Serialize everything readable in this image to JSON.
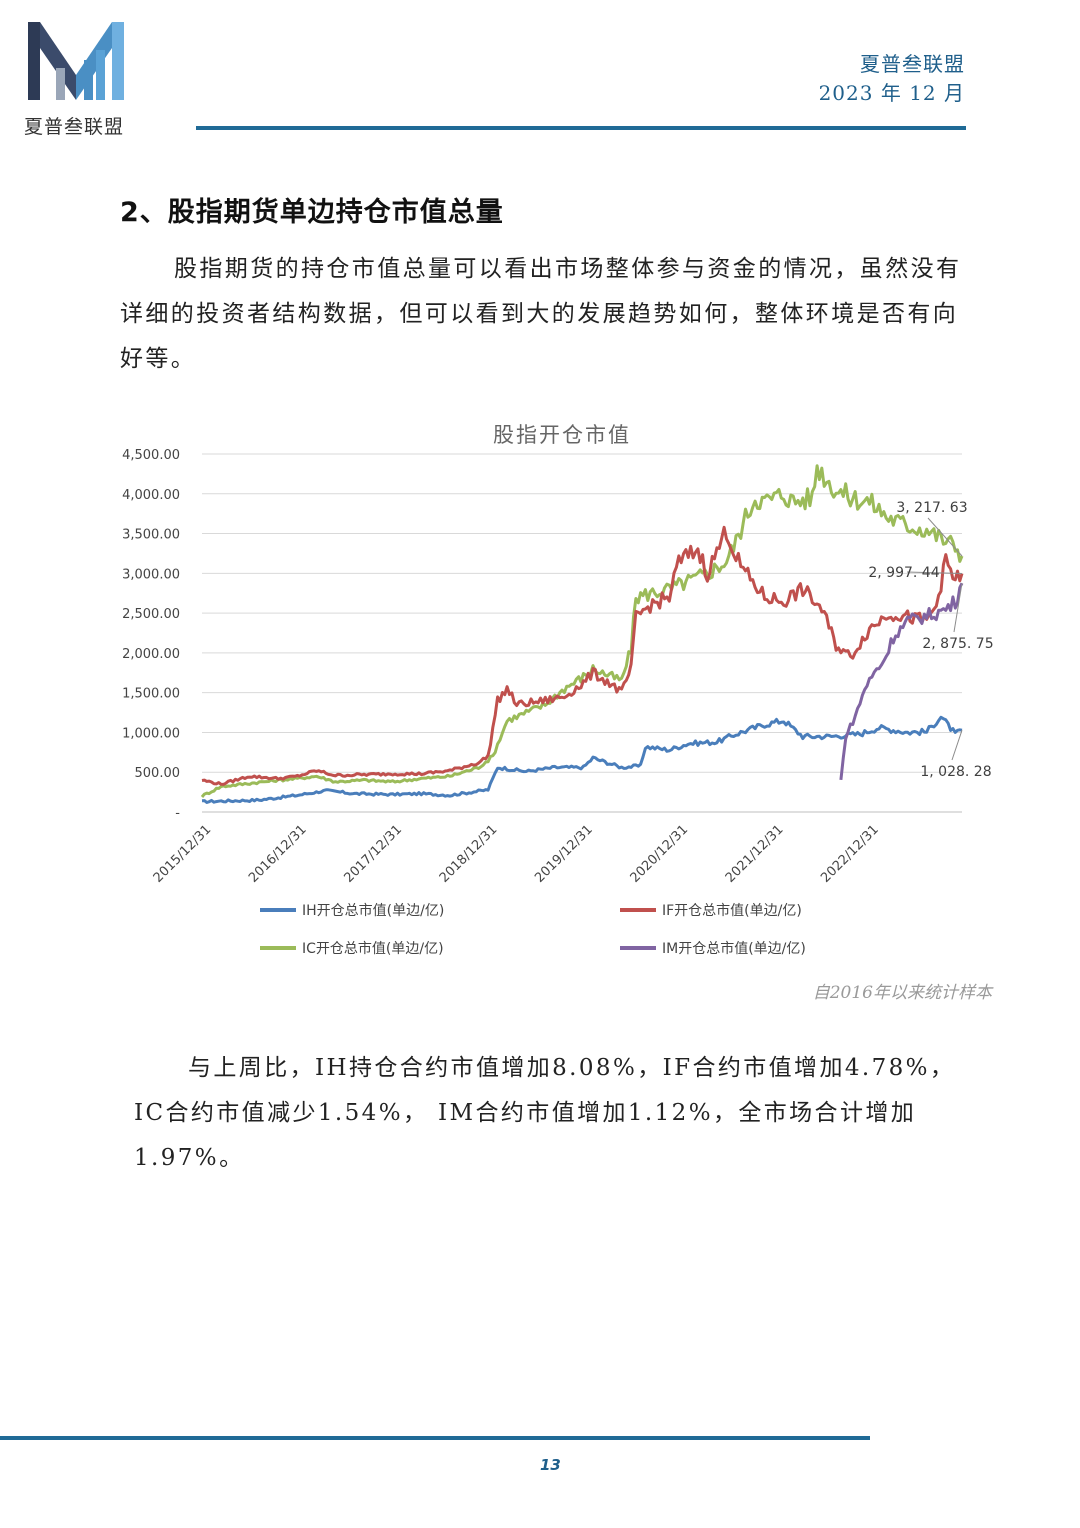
{
  "header": {
    "logo_text": "夏普叁联盟",
    "org_name": "夏普叁联盟",
    "date": "2023 年 12 月"
  },
  "section": {
    "title": "2、股指期货单边持仓市值总量",
    "intro": "股指期货的持仓市值总量可以看出市场整体参与资金的情况，虽然没有详细的投资者结构数据，但可以看到大的发展趋势如何，整体环境是否有向好等。",
    "summary": "与上周比，IH持仓合约市值增加8.08%，IF合约市值增加4.78%，IC合约市值减少1.54%， IM合约市值增加1.12%，全市场合计增加1.97%。"
  },
  "source_note": "自2016年以来统计样本",
  "page_number": "13",
  "colors": {
    "accent": "#1f6a96",
    "IH": "#4a7ebb",
    "IF": "#c0504d",
    "IC": "#9bbb59",
    "IM": "#8064a2"
  },
  "chart_data": {
    "type": "line",
    "title": "股指开仓市值",
    "ylim": [
      0,
      4500
    ],
    "grid": true,
    "legend": "bottom",
    "y_ticks": [
      "-",
      "500.00",
      "1,000.00",
      "1,500.00",
      "2,000.00",
      "2,500.00",
      "3,000.00",
      "3,500.00",
      "4,000.00",
      "4,500.00"
    ],
    "x_ticks": [
      "2015/12/31",
      "2016/12/31",
      "2017/12/31",
      "2018/12/31",
      "2019/12/31",
      "2020/12/31",
      "2021/12/31",
      "2022/12/31"
    ],
    "x_range": [
      2015.9,
      2023.87
    ],
    "series": [
      {
        "name": "IH开仓总市值(单边/亿)",
        "key": "IH",
        "points": [
          [
            2015.9,
            130
          ],
          [
            2016.2,
            140
          ],
          [
            2016.5,
            150
          ],
          [
            2016.9,
            210
          ],
          [
            2017.2,
            270
          ],
          [
            2017.5,
            230
          ],
          [
            2017.9,
            220
          ],
          [
            2018.2,
            230
          ],
          [
            2018.5,
            210
          ],
          [
            2018.9,
            280
          ],
          [
            2019.0,
            560
          ],
          [
            2019.3,
            510
          ],
          [
            2019.6,
            560
          ],
          [
            2019.9,
            560
          ],
          [
            2020.0,
            680
          ],
          [
            2020.3,
            560
          ],
          [
            2020.5,
            580
          ],
          [
            2020.55,
            820
          ],
          [
            2020.8,
            780
          ],
          [
            2021.0,
            860
          ],
          [
            2021.3,
            880
          ],
          [
            2021.5,
            980
          ],
          [
            2021.8,
            1100
          ],
          [
            2022.0,
            1150
          ],
          [
            2022.2,
            950
          ],
          [
            2022.5,
            950
          ],
          [
            2022.8,
            980
          ],
          [
            2023.0,
            1060
          ],
          [
            2023.3,
            1000
          ],
          [
            2023.5,
            1010
          ],
          [
            2023.65,
            1200
          ],
          [
            2023.8,
            980
          ],
          [
            2023.87,
            1028.28
          ]
        ]
      },
      {
        "name": "IF开仓总市值(单边/亿)",
        "key": "IF",
        "points": [
          [
            2015.9,
            400
          ],
          [
            2016.1,
            350
          ],
          [
            2016.4,
            450
          ],
          [
            2016.7,
            420
          ],
          [
            2016.9,
            450
          ],
          [
            2017.1,
            520
          ],
          [
            2017.3,
            460
          ],
          [
            2017.6,
            470
          ],
          [
            2017.9,
            480
          ],
          [
            2018.2,
            480
          ],
          [
            2018.5,
            520
          ],
          [
            2018.8,
            620
          ],
          [
            2018.9,
            700
          ],
          [
            2019.0,
            1400
          ],
          [
            2019.1,
            1550
          ],
          [
            2019.2,
            1350
          ],
          [
            2019.5,
            1400
          ],
          [
            2019.7,
            1450
          ],
          [
            2019.9,
            1620
          ],
          [
            2020.0,
            1750
          ],
          [
            2020.2,
            1600
          ],
          [
            2020.3,
            1500
          ],
          [
            2020.4,
            1800
          ],
          [
            2020.45,
            2450
          ],
          [
            2020.6,
            2600
          ],
          [
            2020.8,
            2700
          ],
          [
            2020.9,
            3150
          ],
          [
            2021.1,
            3300
          ],
          [
            2021.2,
            3000
          ],
          [
            2021.4,
            3550
          ],
          [
            2021.5,
            3200
          ],
          [
            2021.6,
            3000
          ],
          [
            2021.8,
            2700
          ],
          [
            2022.0,
            2650
          ],
          [
            2022.2,
            2800
          ],
          [
            2022.4,
            2550
          ],
          [
            2022.55,
            2100
          ],
          [
            2022.7,
            1950
          ],
          [
            2022.9,
            2300
          ],
          [
            2023.1,
            2500
          ],
          [
            2023.3,
            2450
          ],
          [
            2023.5,
            2400
          ],
          [
            2023.6,
            2600
          ],
          [
            2023.7,
            3150
          ],
          [
            2023.8,
            2900
          ],
          [
            2023.87,
            2997.44
          ]
        ]
      },
      {
        "name": "IC开仓总市值(单边/亿)",
        "key": "IC",
        "points": [
          [
            2015.9,
            200
          ],
          [
            2016.1,
            320
          ],
          [
            2016.4,
            360
          ],
          [
            2016.7,
            400
          ],
          [
            2016.9,
            420
          ],
          [
            2017.1,
            450
          ],
          [
            2017.3,
            380
          ],
          [
            2017.6,
            400
          ],
          [
            2017.9,
            380
          ],
          [
            2018.2,
            420
          ],
          [
            2018.5,
            450
          ],
          [
            2018.8,
            560
          ],
          [
            2018.95,
            700
          ],
          [
            2019.1,
            1150
          ],
          [
            2019.3,
            1250
          ],
          [
            2019.5,
            1350
          ],
          [
            2019.7,
            1550
          ],
          [
            2019.9,
            1700
          ],
          [
            2020.0,
            1800
          ],
          [
            2020.2,
            1700
          ],
          [
            2020.3,
            1650
          ],
          [
            2020.4,
            2050
          ],
          [
            2020.45,
            2700
          ],
          [
            2020.6,
            2750
          ],
          [
            2020.8,
            2800
          ],
          [
            2021.0,
            2900
          ],
          [
            2021.2,
            3000
          ],
          [
            2021.4,
            3150
          ],
          [
            2021.5,
            3400
          ],
          [
            2021.6,
            3700
          ],
          [
            2021.7,
            3950
          ],
          [
            2021.8,
            3900
          ],
          [
            2022.0,
            4000
          ],
          [
            2022.1,
            3900
          ],
          [
            2022.3,
            3950
          ],
          [
            2022.35,
            4350
          ],
          [
            2022.5,
            4100
          ],
          [
            2022.7,
            3950
          ],
          [
            2022.9,
            3900
          ],
          [
            2023.1,
            3700
          ],
          [
            2023.3,
            3600
          ],
          [
            2023.5,
            3550
          ],
          [
            2023.7,
            3400
          ],
          [
            2023.8,
            3350
          ],
          [
            2023.87,
            3217.63
          ]
        ]
      },
      {
        "name": "IM开仓总市值(单边/亿)",
        "key": "IM",
        "points": [
          [
            2022.6,
            400
          ],
          [
            2022.65,
            950
          ],
          [
            2022.75,
            1200
          ],
          [
            2022.85,
            1550
          ],
          [
            2022.95,
            1750
          ],
          [
            2023.05,
            1900
          ],
          [
            2023.15,
            2200
          ],
          [
            2023.3,
            2400
          ],
          [
            2023.45,
            2450
          ],
          [
            2023.6,
            2500
          ],
          [
            2023.7,
            2550
          ],
          [
            2023.8,
            2650
          ],
          [
            2023.87,
            2875.75
          ]
        ]
      }
    ],
    "end_labels": {
      "IC": "3, 217. 63",
      "IF": "2, 997. 44",
      "IM": "2, 875. 75",
      "IH": "1, 028. 28"
    }
  }
}
